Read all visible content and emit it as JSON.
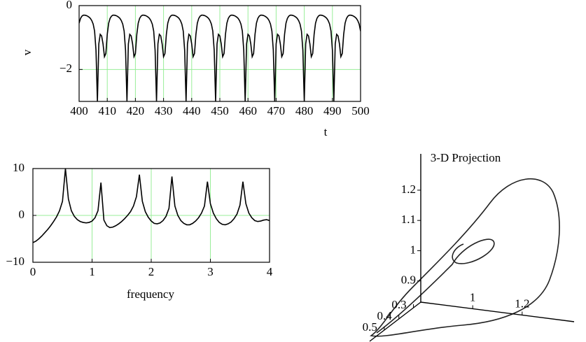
{
  "chart_data": [
    {
      "type": "line",
      "xlabel": "t",
      "ylabel": "v",
      "color": "#000000",
      "grid": true,
      "grid_color": "#99ee99",
      "xlim": [
        400,
        500
      ],
      "ylim": [
        -3,
        0
      ],
      "xticks": [
        400,
        410,
        420,
        430,
        440,
        450,
        460,
        470,
        480,
        490,
        500
      ],
      "yticks": [
        0,
        {
          "value": -2,
          "label": "−2"
        }
      ],
      "x": [
        400,
        400.5,
        401,
        401.5,
        402,
        402.5,
        403,
        403.5,
        404,
        404.5,
        405,
        405.5,
        406,
        406.5,
        407,
        407.5,
        408,
        408.5,
        409,
        409.5,
        410,
        410.5,
        411,
        411.5,
        412,
        412.5,
        413,
        413.5,
        414,
        414.5,
        415,
        415.5,
        416,
        416.5,
        417,
        417.5,
        418,
        418.5,
        419,
        419.5,
        420,
        420.5,
        421,
        421.5,
        422,
        422.5,
        423,
        423.5,
        424,
        424.5,
        425,
        425.5,
        426,
        426.5,
        427,
        427.5,
        428,
        428.5,
        429,
        429.5,
        430,
        430.5,
        431,
        431.5,
        432,
        432.5,
        433,
        433.5,
        434,
        434.5,
        435,
        435.5,
        436,
        436.5,
        437,
        437.5,
        438,
        438.5,
        439,
        439.5,
        440,
        440.5,
        441,
        441.5,
        442,
        442.5,
        443,
        443.5,
        444,
        444.5,
        445,
        445.5,
        446,
        446.5,
        447,
        447.5,
        448,
        448.5,
        449,
        449.5,
        450,
        450.5,
        451,
        451.5,
        452,
        452.5,
        453,
        453.5,
        454,
        454.5,
        455,
        455.5,
        456,
        456.5,
        457,
        457.5,
        458,
        458.5,
        459,
        459.5,
        460,
        460.5,
        461,
        461.5,
        462,
        462.5,
        463,
        463.5,
        464,
        464.5,
        465,
        465.5,
        466,
        466.5,
        467,
        467.5,
        468,
        468.5,
        469,
        469.5,
        470,
        470.5,
        471,
        471.5,
        472,
        472.5,
        473,
        473.5,
        474,
        474.5,
        475,
        475.5,
        476,
        476.5,
        477,
        477.5,
        478,
        478.5,
        479,
        479.5,
        480,
        480.5,
        481,
        481.5,
        482,
        482.5,
        483,
        483.5,
        484,
        484.5,
        485,
        485.5,
        486,
        486.5,
        487,
        487.5,
        488,
        488.5,
        489,
        489.5,
        490,
        490.5,
        491,
        491.5,
        492,
        492.5,
        493,
        493.5,
        494,
        494.5,
        495,
        495.5,
        496,
        496.5,
        497,
        497.5,
        498,
        498.5,
        499,
        499.5,
        500
      ],
      "values": [
        -0.55,
        -0.4,
        -0.33,
        -0.3,
        -0.3,
        -0.31,
        -0.33,
        -0.36,
        -0.4,
        -0.47,
        -0.58,
        -0.8,
        -1.4,
        -3,
        -1.2,
        -0.9,
        -0.95,
        -1.2,
        -1.6,
        -1.5,
        -0.9,
        -0.55,
        -0.4,
        -0.33,
        -0.3,
        -0.3,
        -0.31,
        -0.33,
        -0.36,
        -0.4,
        -0.47,
        -0.58,
        -0.8,
        -1.4,
        -3,
        -1.2,
        -0.9,
        -0.95,
        -1.2,
        -1.6,
        -1.5,
        -0.9,
        -0.55,
        -0.4,
        -0.33,
        -0.3,
        -0.3,
        -0.31,
        -0.33,
        -0.36,
        -0.4,
        -0.47,
        -0.58,
        -0.8,
        -1.4,
        -3,
        -1.2,
        -0.9,
        -0.95,
        -1.2,
        -1.6,
        -1.5,
        -0.9,
        -0.55,
        -0.4,
        -0.33,
        -0.3,
        -0.3,
        -0.31,
        -0.33,
        -0.36,
        -0.4,
        -0.47,
        -0.58,
        -0.8,
        -1.4,
        -3,
        -1.2,
        -0.9,
        -0.95,
        -1.2,
        -1.6,
        -1.5,
        -0.9,
        -0.55,
        -0.4,
        -0.33,
        -0.3,
        -0.3,
        -0.31,
        -0.33,
        -0.36,
        -0.4,
        -0.47,
        -0.58,
        -0.8,
        -1.4,
        -3,
        -1.2,
        -0.9,
        -0.95,
        -1.2,
        -1.6,
        -1.5,
        -0.9,
        -0.55,
        -0.4,
        -0.33,
        -0.3,
        -0.3,
        -0.31,
        -0.33,
        -0.36,
        -0.4,
        -0.47,
        -0.58,
        -0.8,
        -1.4,
        -3,
        -1.2,
        -0.9,
        -0.95,
        -1.2,
        -1.6,
        -1.5,
        -0.9,
        -0.55,
        -0.4,
        -0.33,
        -0.3,
        -0.3,
        -0.31,
        -0.33,
        -0.36,
        -0.4,
        -0.47,
        -0.58,
        -0.8,
        -1.4,
        -3,
        -1.2,
        -0.9,
        -0.95,
        -1.2,
        -1.6,
        -1.5,
        -0.9,
        -0.55,
        -0.4,
        -0.33,
        -0.3,
        -0.3,
        -0.31,
        -0.33,
        -0.36,
        -0.4,
        -0.47,
        -0.58,
        -0.8,
        -1.4,
        -3,
        -1.2,
        -0.9,
        -0.95,
        -1.2,
        -1.6,
        -1.5,
        -0.9,
        -0.55,
        -0.4,
        -0.33,
        -0.3,
        -0.3,
        -0.31,
        -0.33,
        -0.36,
        -0.4,
        -0.47,
        -0.58,
        -0.8,
        -1.4,
        -3,
        -1.2,
        -0.9,
        -0.95,
        -1.2,
        -1.6,
        -1.5,
        -0.9,
        -0.55,
        -0.4,
        -0.33,
        -0.3,
        -0.3,
        -0.31,
        -0.33,
        -0.36,
        -0.4,
        -0.47,
        -0.58,
        -0.8
      ]
    },
    {
      "type": "line",
      "xlabel": "frequency",
      "color": "#000000",
      "grid": true,
      "grid_color": "#99ee99",
      "xlim": [
        0,
        4
      ],
      "ylim": [
        -10,
        10
      ],
      "xticks": [
        0,
        1,
        2,
        3,
        4
      ],
      "yticks": [
        10,
        0,
        {
          "value": -10,
          "label": "−10"
        }
      ],
      "x": [
        0,
        0.05,
        0.1,
        0.15,
        0.2,
        0.25,
        0.3,
        0.35,
        0.4,
        0.45,
        0.5,
        0.55,
        0.6,
        0.65,
        0.7,
        0.75,
        0.8,
        0.85,
        0.9,
        0.95,
        1,
        1.05,
        1.1,
        1.15,
        1.2,
        1.25,
        1.3,
        1.35,
        1.4,
        1.45,
        1.5,
        1.55,
        1.6,
        1.65,
        1.7,
        1.75,
        1.8,
        1.85,
        1.9,
        1.95,
        2,
        2.05,
        2.1,
        2.15,
        2.2,
        2.25,
        2.3,
        2.35,
        2.4,
        2.45,
        2.5,
        2.55,
        2.6,
        2.65,
        2.7,
        2.75,
        2.8,
        2.85,
        2.9,
        2.95,
        3,
        3.05,
        3.1,
        3.15,
        3.2,
        3.25,
        3.3,
        3.35,
        3.4,
        3.45,
        3.5,
        3.55,
        3.6,
        3.65,
        3.7,
        3.75,
        3.8,
        3.85,
        3.9,
        3.95,
        4
      ],
      "values": [
        -5.8,
        -5.5,
        -5,
        -4.4,
        -3.7,
        -3,
        -2.2,
        -1.3,
        -0.3,
        1,
        3,
        10,
        3.5,
        1,
        -0.2,
        -0.9,
        -1.3,
        -1.5,
        -1.6,
        -1.5,
        -1.2,
        -0.5,
        1,
        7,
        -1,
        -2.2,
        -2.6,
        -2.5,
        -2.2,
        -1.8,
        -1.3,
        -0.7,
        0,
        0.8,
        2,
        4,
        8.7,
        3,
        0.8,
        -0.4,
        -1.2,
        -1.7,
        -1.8,
        -1.6,
        -1.1,
        -0.2,
        1.5,
        8.3,
        2,
        0,
        -1.1,
        -1.7,
        -2,
        -2,
        -1.7,
        -1.2,
        -0.5,
        0.5,
        2,
        7.2,
        2.5,
        0.5,
        -0.7,
        -1.5,
        -1.9,
        -2,
        -1.8,
        -1.4,
        -0.7,
        0.3,
        2.2,
        7.2,
        2.5,
        0.5,
        -0.5,
        -1.1,
        -1.3,
        -1.2,
        -1,
        -0.9,
        -1.1
      ]
    },
    {
      "type": "projection3d",
      "title": "3-D Projection",
      "xlim": [
        0.79,
        1.41
      ],
      "ylim": [
        0.25,
        0.6
      ],
      "zlim": [
        0.83,
        1.32
      ],
      "xticks": [
        1,
        1.2
      ],
      "yticks": [
        0.3,
        0.4,
        0.5
      ],
      "zticks": [
        0.9,
        1,
        1.1,
        1.2
      ]
    }
  ]
}
